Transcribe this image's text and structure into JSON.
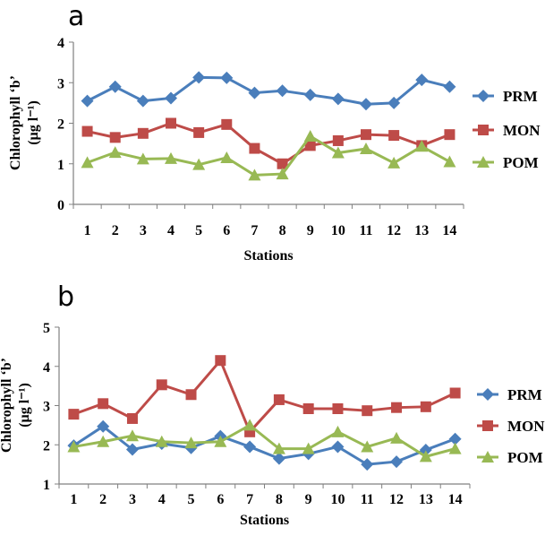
{
  "chart_data": [
    {
      "type": "line",
      "panel_label": "a",
      "categories": [
        "1",
        "2",
        "3",
        "4",
        "5",
        "6",
        "7",
        "8",
        "9",
        "10",
        "11",
        "12",
        "13",
        "14"
      ],
      "xlabel": "Stations",
      "ylabel_line1": "Chlorophyll ‘b’",
      "ylabel_line2": "(µg  l⁻¹)",
      "ylim": [
        0,
        4
      ],
      "yticks": [
        "0",
        "1",
        "2",
        "3",
        "4"
      ],
      "grid": false,
      "legend_position": "right",
      "series": [
        {
          "name": "PRM",
          "color": "#4a7ebb",
          "marker": "diamond",
          "values": [
            2.55,
            2.9,
            2.55,
            2.62,
            3.13,
            3.12,
            2.75,
            2.8,
            2.7,
            2.6,
            2.47,
            2.5,
            3.07,
            2.9
          ]
        },
        {
          "name": "MON",
          "color": "#be4b48",
          "marker": "square",
          "values": [
            1.8,
            1.65,
            1.75,
            2.0,
            1.77,
            1.97,
            1.38,
            1.0,
            1.45,
            1.57,
            1.72,
            1.7,
            1.45,
            1.72
          ]
        },
        {
          "name": "POM",
          "color": "#98b954",
          "marker": "triangle",
          "values": [
            1.03,
            1.28,
            1.12,
            1.13,
            0.98,
            1.15,
            0.72,
            0.75,
            1.68,
            1.27,
            1.37,
            1.02,
            1.43,
            1.05
          ]
        }
      ]
    },
    {
      "type": "line",
      "panel_label": "b",
      "categories": [
        "1",
        "2",
        "3",
        "4",
        "5",
        "6",
        "7",
        "8",
        "9",
        "10",
        "11",
        "12",
        "13",
        "14"
      ],
      "xlabel": "Stations",
      "ylabel_line1": "Chlorophyll ‘b’",
      "ylabel_line2": "(µg  l⁻¹)",
      "ylim": [
        1,
        5
      ],
      "yticks": [
        "1",
        "2",
        "3",
        "4",
        "5"
      ],
      "grid": false,
      "legend_position": "right",
      "series": [
        {
          "name": "PRM",
          "color": "#4a7ebb",
          "marker": "diamond",
          "values": [
            1.98,
            2.47,
            1.88,
            2.03,
            1.92,
            2.22,
            1.95,
            1.65,
            1.77,
            1.95,
            1.5,
            1.57,
            1.87,
            2.15
          ]
        },
        {
          "name": "MON",
          "color": "#be4b48",
          "marker": "square",
          "values": [
            2.78,
            3.05,
            2.67,
            3.53,
            3.28,
            4.15,
            2.33,
            3.15,
            2.92,
            2.92,
            2.87,
            2.95,
            2.97,
            3.32
          ]
        },
        {
          "name": "POM",
          "color": "#98b954",
          "marker": "triangle",
          "values": [
            1.95,
            2.08,
            2.23,
            2.08,
            2.05,
            2.08,
            2.5,
            1.9,
            1.9,
            2.33,
            1.95,
            2.17,
            1.7,
            1.9
          ]
        }
      ]
    }
  ]
}
